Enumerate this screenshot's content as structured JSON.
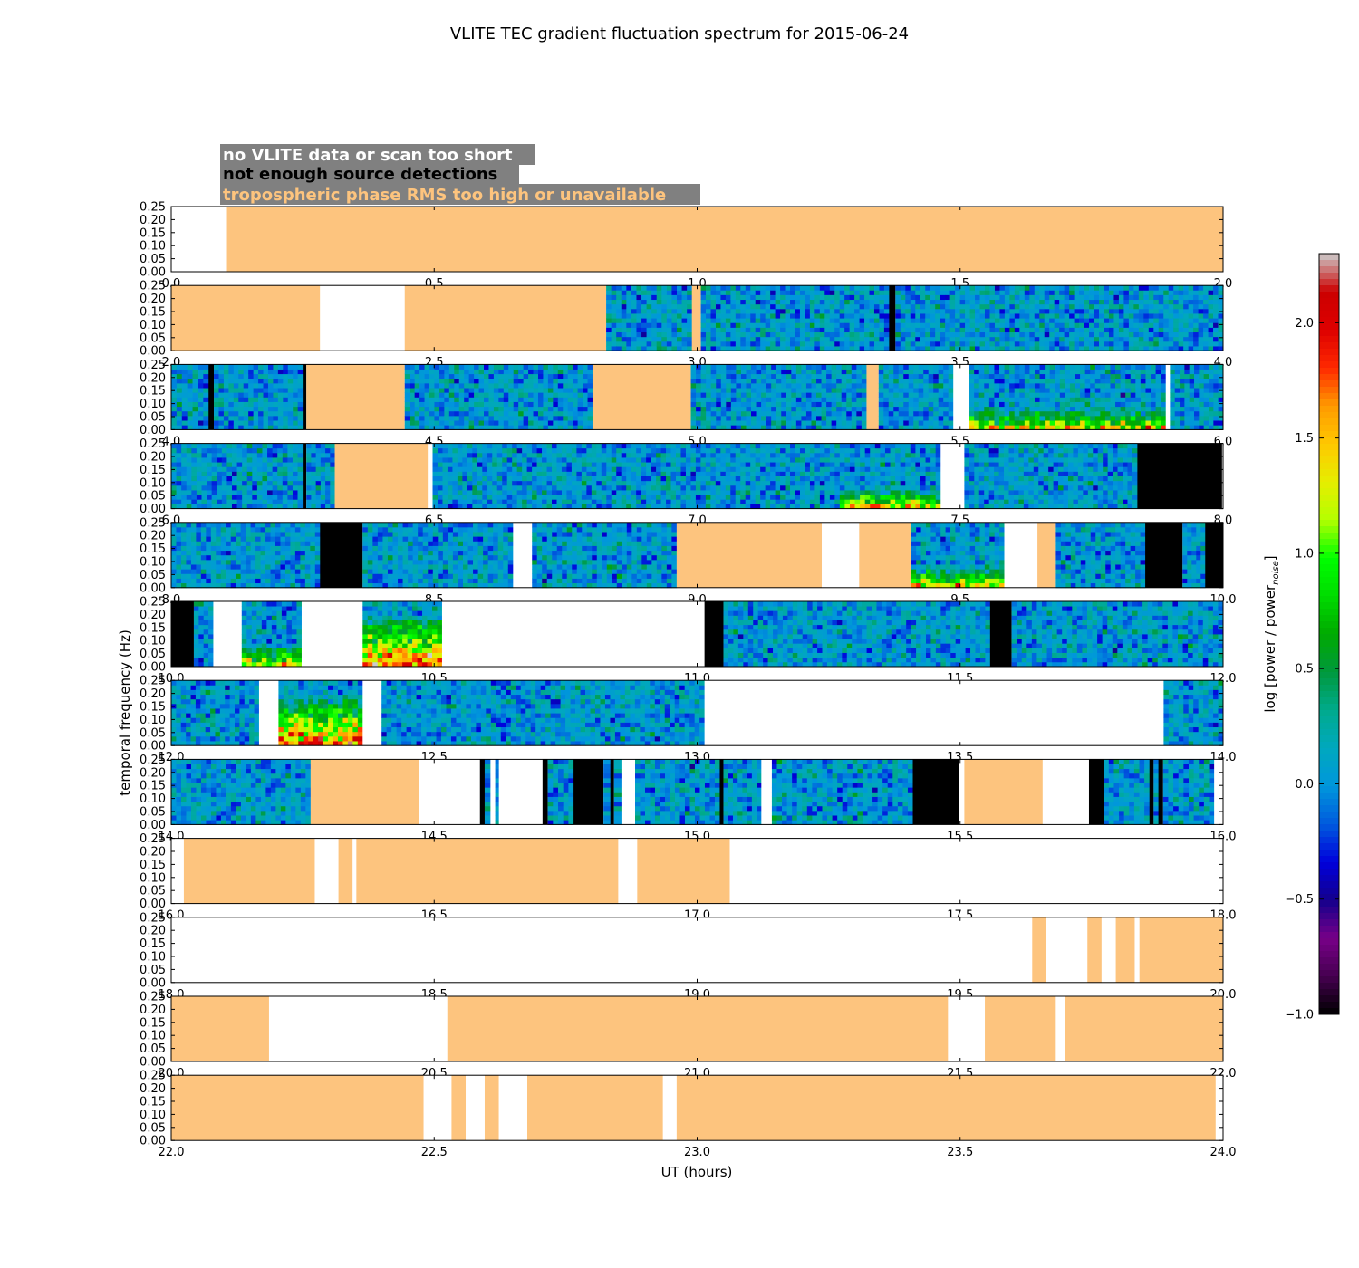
{
  "chart_data": {
    "type": "heatmap",
    "title": "VLITE TEC gradient fluctuation spectrum for 2015-06-24",
    "xlabel": "UT (hours)",
    "ylabel": "temporal frequency (Hz)",
    "colorbar": {
      "label": "log [power / power",
      "label_sub": "noise",
      "label_close": "]",
      "ticks": [
        -1.0,
        -0.5,
        0.0,
        0.5,
        1.0,
        1.5,
        2.0
      ],
      "tick_labels": [
        "−1.0",
        "−0.5",
        "0.0",
        "0.5",
        "1.0",
        "1.5",
        "2.0"
      ],
      "range": [
        -1.0,
        2.3
      ],
      "colormap": "nipy_spectral"
    },
    "legend": [
      {
        "label": "no VLITE data or scan too short",
        "color": "#ffffff"
      },
      {
        "label": "not enough source detections",
        "color": "#000000"
      },
      {
        "label": "tropospheric phase RMS too high or unavailable",
        "color": "#fdc47e"
      }
    ],
    "legend_bg": "#808080",
    "colors": {
      "tropo": "#fdc47e",
      "no_data": "#ffffff",
      "no_detect": "#000000"
    },
    "ylim": [
      0,
      0.25
    ],
    "yticks": [
      "0.00",
      "0.05",
      "0.10",
      "0.15",
      "0.20",
      "0.25"
    ],
    "panels": [
      {
        "xlim": [
          0,
          2
        ],
        "xticks": [
          "0.0",
          "0.5",
          "1.0",
          "1.5",
          "2.0"
        ],
        "segments": [
          [
            0.0,
            0.106,
            "none"
          ],
          [
            0.106,
            2.0,
            "tropo"
          ]
        ]
      },
      {
        "xlim": [
          2,
          4
        ],
        "xticks": [
          "2.0",
          "2.5",
          "3.0",
          "3.5",
          "4.0"
        ],
        "segments": [
          [
            2.0,
            2.283,
            "tropo"
          ],
          [
            2.283,
            2.444,
            "none"
          ],
          [
            2.444,
            2.827,
            "tropo"
          ],
          [
            2.827,
            2.99,
            "data"
          ],
          [
            2.99,
            3.007,
            "tropo"
          ],
          [
            3.007,
            3.365,
            "data"
          ],
          [
            3.365,
            3.377,
            "black"
          ],
          [
            3.377,
            4.0,
            "data"
          ]
        ]
      },
      {
        "xlim": [
          4,
          6
        ],
        "xticks": [
          "4.0",
          "4.5",
          "5.0",
          "5.5",
          "6.0"
        ],
        "segments": [
          [
            4.0,
            4.071,
            "data"
          ],
          [
            4.071,
            4.081,
            "black"
          ],
          [
            4.081,
            4.25,
            "data"
          ],
          [
            4.25,
            4.257,
            "black"
          ],
          [
            4.257,
            4.444,
            "tropo"
          ],
          [
            4.444,
            4.801,
            "data"
          ],
          [
            4.801,
            4.988,
            "tropo"
          ],
          [
            4.988,
            5.322,
            "data"
          ],
          [
            5.322,
            5.345,
            "tropo"
          ],
          [
            5.345,
            5.487,
            "data"
          ],
          [
            5.487,
            5.517,
            "none"
          ],
          [
            5.517,
            5.891,
            "data",
            "hi"
          ],
          [
            5.891,
            5.899,
            "none"
          ],
          [
            5.899,
            6.0,
            "data"
          ]
        ]
      },
      {
        "xlim": [
          6,
          8
        ],
        "xticks": [
          "6.0",
          "6.5",
          "7.0",
          "7.5",
          "8.0"
        ],
        "segments": [
          [
            6.0,
            6.25,
            "data"
          ],
          [
            6.25,
            6.257,
            "black"
          ],
          [
            6.257,
            6.311,
            "data"
          ],
          [
            6.311,
            6.488,
            "tropo"
          ],
          [
            6.488,
            6.497,
            "none"
          ],
          [
            6.497,
            7.271,
            "data"
          ],
          [
            7.271,
            7.463,
            "data",
            "hi"
          ],
          [
            7.463,
            7.508,
            "none"
          ],
          [
            7.508,
            7.837,
            "data"
          ],
          [
            7.837,
            7.998,
            "black"
          ]
        ]
      },
      {
        "xlim": [
          8,
          10
        ],
        "xticks": [
          "8.0",
          "8.5",
          "9.0",
          "9.5",
          "10.0"
        ],
        "segments": [
          [
            8.0,
            8.283,
            "data"
          ],
          [
            8.283,
            8.364,
            "black"
          ],
          [
            8.364,
            8.65,
            "data"
          ],
          [
            8.65,
            8.686,
            "none"
          ],
          [
            8.686,
            8.961,
            "data"
          ],
          [
            8.961,
            9.237,
            "tropo"
          ],
          [
            9.237,
            9.308,
            "none"
          ],
          [
            9.308,
            9.407,
            "tropo"
          ],
          [
            9.407,
            9.584,
            "data",
            "hi"
          ],
          [
            9.584,
            9.647,
            "none"
          ],
          [
            9.647,
            9.682,
            "tropo"
          ],
          [
            9.682,
            9.852,
            "data"
          ],
          [
            9.852,
            9.923,
            "black"
          ],
          [
            9.923,
            9.966,
            "data"
          ],
          [
            9.966,
            10.0,
            "black"
          ]
        ]
      },
      {
        "xlim": [
          10,
          12
        ],
        "xticks": [
          "10.0",
          "10.5",
          "11.0",
          "11.5",
          "12.0"
        ],
        "segments": [
          [
            10.0,
            10.043,
            "black"
          ],
          [
            10.043,
            10.08,
            "data"
          ],
          [
            10.08,
            10.134,
            "none"
          ],
          [
            10.134,
            10.248,
            "data",
            "hi"
          ],
          [
            10.248,
            10.364,
            "none"
          ],
          [
            10.364,
            10.515,
            "data",
            "vhi"
          ],
          [
            10.515,
            11.014,
            "none"
          ],
          [
            11.014,
            11.05,
            "black"
          ],
          [
            11.05,
            11.557,
            "data"
          ],
          [
            11.557,
            11.598,
            "black"
          ],
          [
            11.598,
            12.0,
            "data"
          ]
        ]
      },
      {
        "xlim": [
          12,
          14
        ],
        "xticks": [
          "12.0",
          "12.5",
          "13.0",
          "13.5",
          "14.0"
        ],
        "segments": [
          [
            12.0,
            12.167,
            "data"
          ],
          [
            12.167,
            12.204,
            "none"
          ],
          [
            12.204,
            12.364,
            "data",
            "vhi"
          ],
          [
            12.364,
            12.4,
            "none"
          ],
          [
            12.4,
            13.014,
            "data"
          ],
          [
            13.014,
            13.887,
            "none"
          ],
          [
            13.887,
            14.0,
            "data"
          ]
        ]
      },
      {
        "xlim": [
          14,
          16
        ],
        "xticks": [
          "14.0",
          "14.5",
          "15.0",
          "15.5",
          "16.0"
        ],
        "segments": [
          [
            14.0,
            14.265,
            "data"
          ],
          [
            14.265,
            14.471,
            "tropo"
          ],
          [
            14.471,
            14.587,
            "none"
          ],
          [
            14.587,
            14.596,
            "black"
          ],
          [
            14.596,
            14.607,
            "data"
          ],
          [
            14.607,
            14.616,
            "none"
          ],
          [
            14.616,
            14.623,
            "data"
          ],
          [
            14.623,
            14.706,
            "none"
          ],
          [
            14.706,
            14.716,
            "black"
          ],
          [
            14.716,
            14.765,
            "data"
          ],
          [
            14.765,
            14.822,
            "black"
          ],
          [
            14.822,
            14.835,
            "data"
          ],
          [
            14.835,
            14.842,
            "black"
          ],
          [
            14.842,
            14.856,
            "data"
          ],
          [
            14.856,
            14.882,
            "none"
          ],
          [
            14.882,
            15.043,
            "data"
          ],
          [
            15.043,
            15.05,
            "black"
          ],
          [
            15.05,
            15.122,
            "data"
          ],
          [
            15.122,
            15.142,
            "none"
          ],
          [
            15.142,
            15.41,
            "data"
          ],
          [
            15.41,
            15.498,
            "black"
          ],
          [
            15.498,
            15.508,
            "none"
          ],
          [
            15.508,
            15.657,
            "tropo"
          ],
          [
            15.657,
            15.745,
            "none"
          ],
          [
            15.745,
            15.773,
            "black"
          ],
          [
            15.773,
            15.86,
            "data"
          ],
          [
            15.86,
            15.868,
            "black"
          ],
          [
            15.868,
            15.877,
            "data"
          ],
          [
            15.877,
            15.886,
            "black"
          ],
          [
            15.886,
            15.983,
            "data"
          ],
          [
            15.983,
            16.0,
            "none"
          ]
        ]
      },
      {
        "xlim": [
          16,
          18
        ],
        "xticks": [
          "16.0",
          "16.5",
          "17.0",
          "17.5",
          "18.0"
        ],
        "segments": [
          [
            16.0,
            16.024,
            "none"
          ],
          [
            16.024,
            16.273,
            "tropo"
          ],
          [
            16.273,
            16.318,
            "none"
          ],
          [
            16.318,
            16.345,
            "tropo"
          ],
          [
            16.345,
            16.352,
            "none"
          ],
          [
            16.352,
            16.85,
            "tropo"
          ],
          [
            16.85,
            16.886,
            "none"
          ],
          [
            16.886,
            17.062,
            "tropo"
          ],
          [
            17.062,
            18.0,
            "none"
          ]
        ]
      },
      {
        "xlim": [
          18,
          20
        ],
        "xticks": [
          "18.0",
          "18.5",
          "19.0",
          "19.5",
          "20.0"
        ],
        "segments": [
          [
            18.0,
            19.637,
            "none"
          ],
          [
            19.637,
            19.664,
            "tropo"
          ],
          [
            19.664,
            19.742,
            "none"
          ],
          [
            19.742,
            19.769,
            "tropo"
          ],
          [
            19.769,
            19.796,
            "none"
          ],
          [
            19.796,
            19.832,
            "tropo"
          ],
          [
            19.832,
            19.841,
            "none"
          ],
          [
            19.841,
            20.0,
            "tropo"
          ]
        ]
      },
      {
        "xlim": [
          20,
          22
        ],
        "xticks": [
          "20.0",
          "20.5",
          "21.0",
          "21.5",
          "22.0"
        ],
        "segments": [
          [
            20.0,
            20.186,
            "tropo"
          ],
          [
            20.186,
            20.525,
            "none"
          ],
          [
            20.525,
            21.477,
            "tropo"
          ],
          [
            21.477,
            21.547,
            "none"
          ],
          [
            21.547,
            21.682,
            "tropo"
          ],
          [
            21.682,
            21.699,
            "none"
          ],
          [
            21.699,
            22.0,
            "tropo"
          ]
        ]
      },
      {
        "xlim": [
          22,
          24
        ],
        "xticks": [
          "22.0",
          "22.5",
          "23.0",
          "23.5",
          "24.0"
        ],
        "segments": [
          [
            22.0,
            22.48,
            "tropo"
          ],
          [
            22.48,
            22.533,
            "none"
          ],
          [
            22.533,
            22.56,
            "tropo"
          ],
          [
            22.56,
            22.596,
            "none"
          ],
          [
            22.596,
            22.623,
            "tropo"
          ],
          [
            22.623,
            22.677,
            "none"
          ],
          [
            22.677,
            22.935,
            "tropo"
          ],
          [
            22.935,
            22.961,
            "none"
          ],
          [
            22.961,
            23.986,
            "tropo"
          ],
          [
            23.986,
            24.0,
            "none"
          ]
        ]
      }
    ]
  }
}
